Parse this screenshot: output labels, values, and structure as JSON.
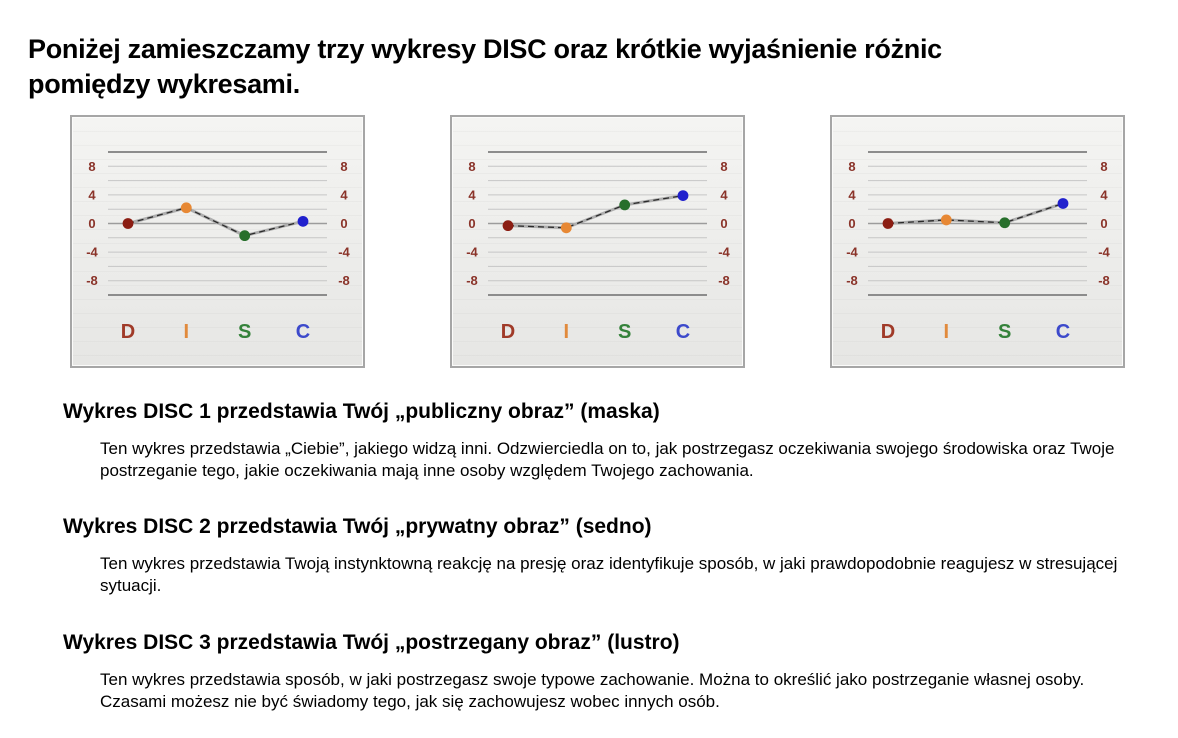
{
  "title": {
    "line1": "Poniżej zamieszczamy trzy wykresy DISC oraz krótkie wyjaśnienie różnic",
    "line2": "pomiędzy wykresami."
  },
  "chart_data": {
    "type": "line",
    "categories": [
      "D",
      "I",
      "S",
      "C"
    ],
    "series": [
      {
        "name": "Wykres DISC 1",
        "values": [
          0,
          2.2,
          -1.7,
          0.3
        ]
      },
      {
        "name": "Wykres DISC 2",
        "values": [
          -0.3,
          -0.6,
          2.6,
          3.9
        ]
      },
      {
        "name": "Wykres DISC 3",
        "values": [
          0,
          0.5,
          0.1,
          2.8
        ]
      }
    ],
    "ylim": [
      -10,
      10
    ],
    "yticks": [
      8,
      4,
      0,
      -4,
      -8
    ],
    "gridline_step": 2,
    "grid": "on",
    "legend": "none",
    "tick_label_color": "#8a3329",
    "letter_colors": {
      "D": "#a03a28",
      "I": "#e18a3c",
      "S": "#34823a",
      "C": "#3c49cb"
    },
    "dot_colors": {
      "D": "#8b1d12",
      "I": "#e78834",
      "S": "#276f2b",
      "C": "#2020cd"
    },
    "line_base_color": "#aeaeae",
    "line_dash_color": "#2a2a2a",
    "grid_major_color": "#8c8c8c",
    "grid_zero_color": "#9c9c9c",
    "grid_minor_color": "#c6c6c6"
  },
  "sections": [
    {
      "heading": "Wykres DISC 1 przedstawia Twój „publiczny obraz” (maska)",
      "body": "Ten wykres przedstawia „Ciebie”, jakiego widzą inni. Odzwierciedla on to, jak postrzegasz oczekiwania swojego środowiska oraz Twoje postrzeganie tego, jakie oczekiwania mają inne osoby względem Twojego zachowania."
    },
    {
      "heading": "Wykres DISC 2 przedstawia Twój „prywatny obraz” (sedno)",
      "body": "Ten wykres przedstawia Twoją instynktowną reakcję na presję oraz identyfikuje sposób, w jaki prawdopodobnie reagujesz w stresującej sytuacji."
    },
    {
      "heading": "Wykres DISC 3 przedstawia Twój „postrzegany obraz” (lustro)",
      "body": "Ten wykres przedstawia sposób, w jaki postrzegasz swoje typowe zachowanie. Można to określić jako postrzeganie własnej osoby. Czasami możesz nie być świadomy tego, jak się zachowujesz wobec innych osób."
    }
  ]
}
